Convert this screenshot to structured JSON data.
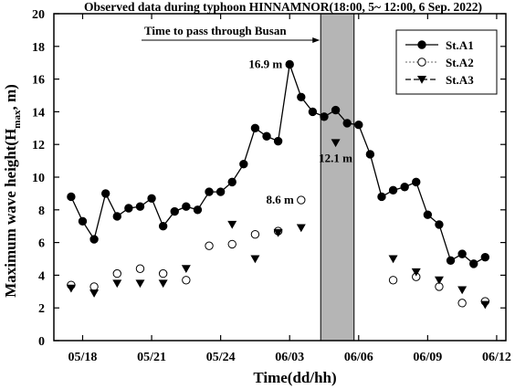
{
  "chart_data": {
    "type": "line",
    "title": "Observed data during typhoon HINNAMNOR(18:00, 5~ 12:00, 6  Sep. 2022)",
    "xlabel": "Time(dd/hh)",
    "ylabel": "Maximum wave height(H",
    "ylabel_sub": "max",
    "ylabel_end": ", m)",
    "ylim": [
      0,
      20
    ],
    "yticks": [
      0,
      2,
      4,
      6,
      8,
      10,
      12,
      14,
      16,
      18,
      20
    ],
    "xlim": [
      0,
      32
    ],
    "xticks": [
      {
        "x": 1,
        "label": "05/18"
      },
      {
        "x": 7,
        "label": "05/21"
      },
      {
        "x": 13,
        "label": "05/24"
      },
      {
        "x": 19,
        "label": "06/03"
      },
      {
        "x": 25,
        "label": "06/06"
      },
      {
        "x": 31,
        "label": "06/09"
      },
      {
        "x": 37,
        "label": "06/12"
      }
    ],
    "shaded_range": [
      21.7,
      24.6
    ],
    "shaded_label": "Time to pass through Busan",
    "grid": false,
    "legend_position": "top-right",
    "series": [
      {
        "name": "St.A1",
        "marker": "filled-circle",
        "line": "solid",
        "points": [
          [
            0,
            8.8
          ],
          [
            1,
            7.3
          ],
          [
            2,
            6.2
          ],
          [
            3,
            9.0
          ],
          [
            4,
            7.6
          ],
          [
            5,
            8.1
          ],
          [
            6,
            8.2
          ],
          [
            7,
            8.7
          ],
          [
            8,
            7.0
          ],
          [
            9,
            7.9
          ],
          [
            10,
            8.2
          ],
          [
            11,
            8.0
          ],
          [
            12,
            9.1
          ],
          [
            13,
            9.1
          ],
          [
            14,
            9.7
          ],
          [
            15,
            10.8
          ],
          [
            16,
            13.0
          ],
          [
            17,
            12.5
          ],
          [
            18,
            12.2
          ],
          [
            19,
            16.9
          ],
          [
            20,
            14.9
          ],
          [
            21,
            14.0
          ],
          [
            22,
            13.7
          ],
          [
            23,
            14.1
          ],
          [
            24,
            13.3
          ],
          [
            25,
            13.2
          ],
          [
            26,
            11.4
          ],
          [
            27,
            8.8
          ],
          [
            28,
            9.2
          ],
          [
            29,
            9.4
          ],
          [
            30,
            9.7
          ],
          [
            31,
            7.7
          ],
          [
            32,
            7.1
          ],
          [
            33,
            4.9
          ],
          [
            34,
            5.3
          ],
          [
            35,
            4.7
          ],
          [
            36,
            5.1
          ]
        ]
      },
      {
        "name": "St.A2",
        "marker": "open-circle",
        "line": "none",
        "points": [
          [
            0,
            3.4
          ],
          [
            2,
            3.3
          ],
          [
            4,
            4.1
          ],
          [
            6,
            4.4
          ],
          [
            8,
            4.1
          ],
          [
            10,
            3.7
          ],
          [
            12,
            5.8
          ],
          [
            14,
            5.9
          ],
          [
            16,
            6.5
          ],
          [
            18,
            6.7
          ],
          [
            20,
            8.6
          ],
          [
            28,
            3.7
          ],
          [
            30,
            3.9
          ],
          [
            32,
            3.3
          ],
          [
            34,
            2.3
          ],
          [
            36,
            2.4
          ]
        ]
      },
      {
        "name": "St.A3",
        "marker": "filled-triangle-down",
        "line": "none",
        "points": [
          [
            0,
            3.2
          ],
          [
            2,
            2.9
          ],
          [
            4,
            3.5
          ],
          [
            6,
            3.5
          ],
          [
            8,
            3.5
          ],
          [
            10,
            4.4
          ],
          [
            14,
            7.1
          ],
          [
            16,
            5.0
          ],
          [
            18,
            6.6
          ],
          [
            20,
            6.9
          ],
          [
            23,
            12.1
          ],
          [
            28,
            5.0
          ],
          [
            30,
            4.2
          ],
          [
            32,
            3.7
          ],
          [
            34,
            3.1
          ],
          [
            36,
            2.2
          ]
        ]
      }
    ],
    "annotations": [
      {
        "text": "16.9 m",
        "x": 19,
        "y": 16.9,
        "anchor": "left"
      },
      {
        "text": "8.6 m",
        "x": 20,
        "y": 8.6,
        "anchor": "left"
      },
      {
        "text": "12.1 m",
        "x": 23,
        "y": 12.1,
        "anchor": "below"
      }
    ]
  }
}
